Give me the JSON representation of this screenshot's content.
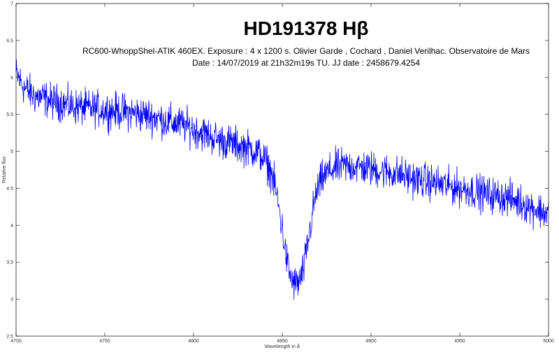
{
  "chart_data": {
    "type": "line",
    "title": "HD191378 Hβ",
    "subtitle_lines": [
      "RC600-WhoppShel-ATIK 460EX. Exposure : 4 x 1200 s. Olivier Garde , Cochard , Daniel Verilhac. Observatoire de Mars",
      "Date : 14/07/2019 at 21h32m19s TU. JJ date : 2458679.4254"
    ],
    "xlabel": "Wavelength in Å",
    "ylabel": "Relative flux",
    "xlim": [
      4700,
      5000
    ],
    "ylim": [
      2.5,
      7
    ],
    "x_ticks": [
      4700,
      4750,
      4800,
      4850,
      4900,
      4950,
      5000
    ],
    "y_ticks": [
      2.5,
      3,
      3.5,
      4,
      4.5,
      5,
      5.5,
      6,
      6.5,
      7
    ],
    "y_tick_labels": [
      "2.5",
      "3",
      "3.5",
      "4",
      "4.5",
      "5",
      "5.5",
      "6",
      "6.5",
      "7"
    ],
    "grid": false,
    "series": [
      {
        "color": "#0000ff",
        "x": [
          4700,
          4705,
          4710,
          4715,
          4720,
          4725,
          4730,
          4735,
          4740,
          4745,
          4750,
          4755,
          4760,
          4765,
          4770,
          4775,
          4780,
          4785,
          4790,
          4795,
          4800,
          4805,
          4810,
          4815,
          4820,
          4825,
          4830,
          4835,
          4838,
          4841,
          4844,
          4846,
          4848,
          4850,
          4852,
          4854,
          4856,
          4858,
          4860,
          4862,
          4864,
          4866,
          4868,
          4870,
          4873,
          4876,
          4880,
          4885,
          4890,
          4895,
          4900,
          4905,
          4910,
          4915,
          4920,
          4925,
          4930,
          4935,
          4940,
          4945,
          4950,
          4955,
          4960,
          4965,
          4970,
          4975,
          4980,
          4985,
          4990,
          4995,
          5000
        ],
        "values": [
          6.05,
          5.85,
          5.75,
          5.72,
          5.68,
          5.66,
          5.62,
          5.6,
          5.58,
          5.58,
          5.56,
          5.55,
          5.54,
          5.52,
          5.5,
          5.48,
          5.45,
          5.4,
          5.38,
          5.35,
          5.3,
          5.25,
          5.2,
          5.15,
          5.12,
          5.08,
          5.05,
          5.0,
          4.95,
          4.85,
          4.7,
          4.5,
          4.25,
          3.95,
          3.6,
          3.35,
          3.22,
          3.2,
          3.25,
          3.4,
          3.7,
          4.0,
          4.3,
          4.5,
          4.65,
          4.72,
          4.78,
          4.8,
          4.8,
          4.78,
          4.76,
          4.74,
          4.72,
          4.7,
          4.66,
          4.62,
          4.6,
          4.58,
          4.55,
          4.52,
          4.5,
          4.48,
          4.45,
          4.42,
          4.4,
          4.38,
          4.35,
          4.3,
          4.25,
          4.2,
          4.15
        ],
        "noise_amplitude": 0.12
      }
    ]
  }
}
